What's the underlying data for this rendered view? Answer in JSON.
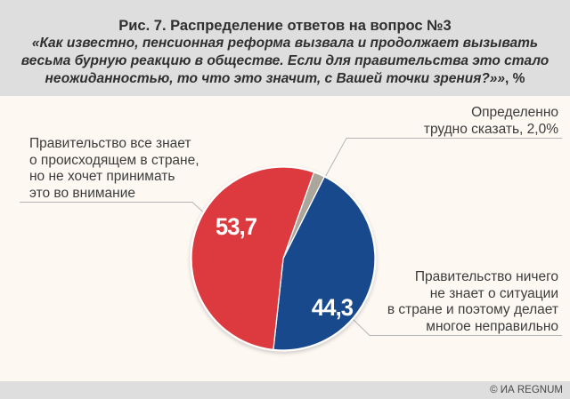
{
  "header": {
    "title": "Рис. 7. Распределение ответов на вопрос №3",
    "subtitle": "«Как известно, пенсионная реформа вызвала и продолжает вызывать\nвесьма бурную реакцию в обществе. Если для правительства это стало\nнеожиданностью, то что это значит, с Вашей точки зрения?»»",
    "subtitle_suffix": ", %"
  },
  "chart_data": {
    "type": "pie",
    "title": "Рис. 7. Распределение ответов на вопрос №3",
    "unit": "%",
    "direction": "clockwise",
    "start_angle_deg": 19.5,
    "legend_position": "callouts",
    "slices": [
      {
        "id": "hard-to-say",
        "label": "Определенно трудно сказать",
        "value": 2.0,
        "value_label": "2,0%",
        "color": "#aba69c"
      },
      {
        "id": "knows-nothing",
        "label": "Правительство ничего не знает о ситуации в стране и поэтому делает многое неправильно",
        "value": 44.3,
        "value_label": "44,3",
        "color": "#17498c"
      },
      {
        "id": "knows-all",
        "label": "Правительство все знает о происходящем в стране, но не хочет принимать это во внимание",
        "value": 53.7,
        "value_label": "53,7",
        "color": "#dc3a3f"
      }
    ]
  },
  "annotations": {
    "left_label": "Правительство все знает\nо происходящем в стране,\nно не хочет принимать\nэто во внимание",
    "top_right_label": "Определенно\nтрудно сказать, 2,0%",
    "bottom_right_label": "Правительство ничего\nне знает о ситуации\nв стране и поэтому делает\nмногое неправильно"
  },
  "footer": {
    "credit": "© ИА REGNUM"
  },
  "colors": {
    "header_bg": "#dedede",
    "body_bg": "#fdf8f2",
    "footer_bg": "#dedede",
    "red_slice": "#dc3a3f",
    "blue_slice": "#17498c",
    "gray_slice": "#aba69c",
    "leader_line": "#b5b5b5",
    "text": "#3c3c3c"
  }
}
